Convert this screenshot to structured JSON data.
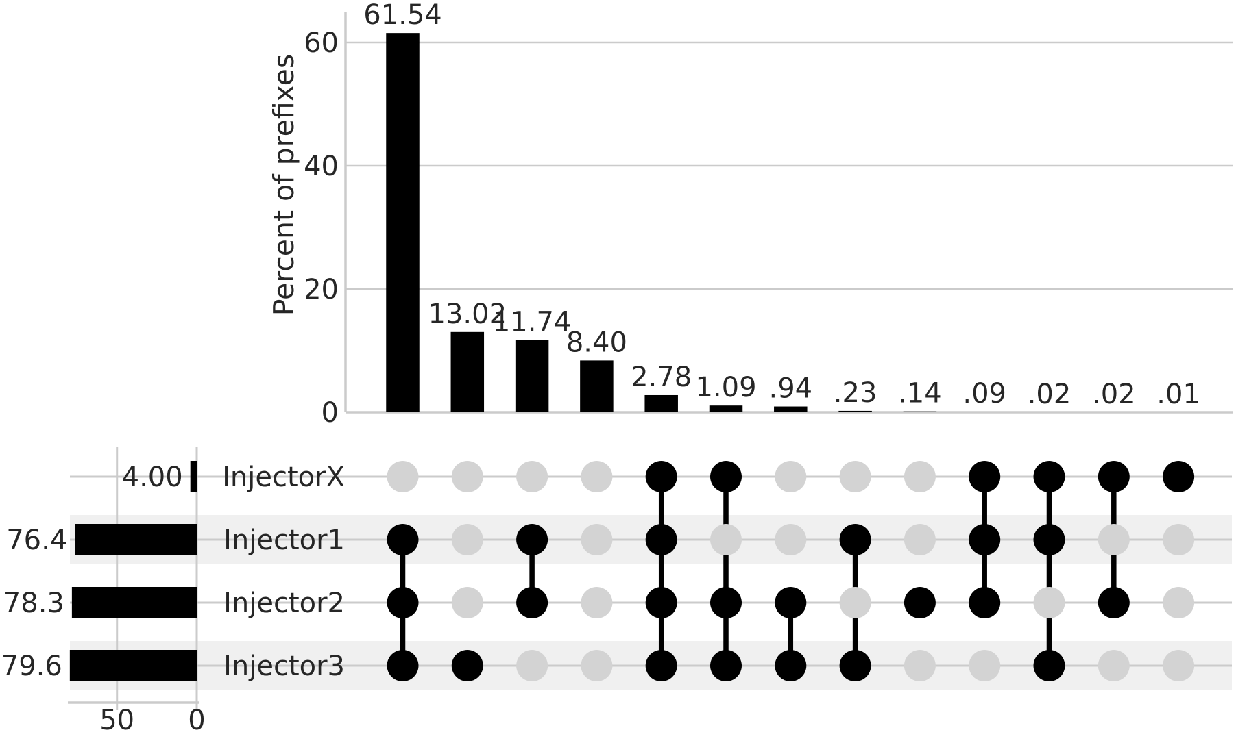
{
  "colors": {
    "bar": "#000000",
    "active_dot": "#000000",
    "inactive_dot": "#d3d3d3",
    "grid": "#cbcbcb",
    "stripe": "#f0f0f0",
    "text": "#262626",
    "background": "#ffffff"
  },
  "chart_data": {
    "type": "upset",
    "description": "UpSet plot of set intersections between four injectors",
    "intersection_bars": {
      "type": "bar",
      "ylabel": "Percent of prefixes",
      "yticks": [
        "0",
        "20",
        "40",
        "60"
      ],
      "ytick_values": [
        0,
        20,
        40,
        60
      ],
      "ylim": [
        0,
        64.5
      ],
      "grid": true,
      "values": [
        61.54,
        13.02,
        11.74,
        8.4,
        2.78,
        1.09,
        0.94,
        0.23,
        0.14,
        0.09,
        0.02,
        0.02,
        0.01
      ],
      "bar_labels": [
        "61.54",
        "13.02",
        "11.74",
        "8.40",
        "2.78",
        "1.09",
        ".94",
        ".23",
        ".14",
        ".09",
        ".02",
        ".02",
        ".01"
      ]
    },
    "set_size_bars": {
      "type": "bar",
      "orientation": "horizontal-reversed",
      "xticks": [
        "50",
        "0"
      ],
      "xtick_values": [
        50,
        0
      ],
      "values": [
        4.0,
        76.4,
        78.3,
        79.6
      ],
      "bar_labels": [
        "4.00",
        "76.4",
        "78.3",
        "79.6"
      ]
    },
    "sets": [
      "InjectorX",
      "Injector1",
      "Injector2",
      "Injector3"
    ],
    "membership_matrix": [
      [
        0,
        1,
        1,
        1
      ],
      [
        0,
        0,
        0,
        1
      ],
      [
        0,
        1,
        1,
        0
      ],
      [
        0,
        0,
        0,
        0
      ],
      [
        1,
        1,
        1,
        1
      ],
      [
        1,
        0,
        1,
        1
      ],
      [
        0,
        0,
        1,
        1
      ],
      [
        0,
        1,
        0,
        1
      ],
      [
        0,
        0,
        1,
        0
      ],
      [
        1,
        1,
        1,
        0
      ],
      [
        1,
        1,
        0,
        1
      ],
      [
        1,
        0,
        1,
        0
      ],
      [
        1,
        0,
        0,
        0
      ]
    ]
  }
}
